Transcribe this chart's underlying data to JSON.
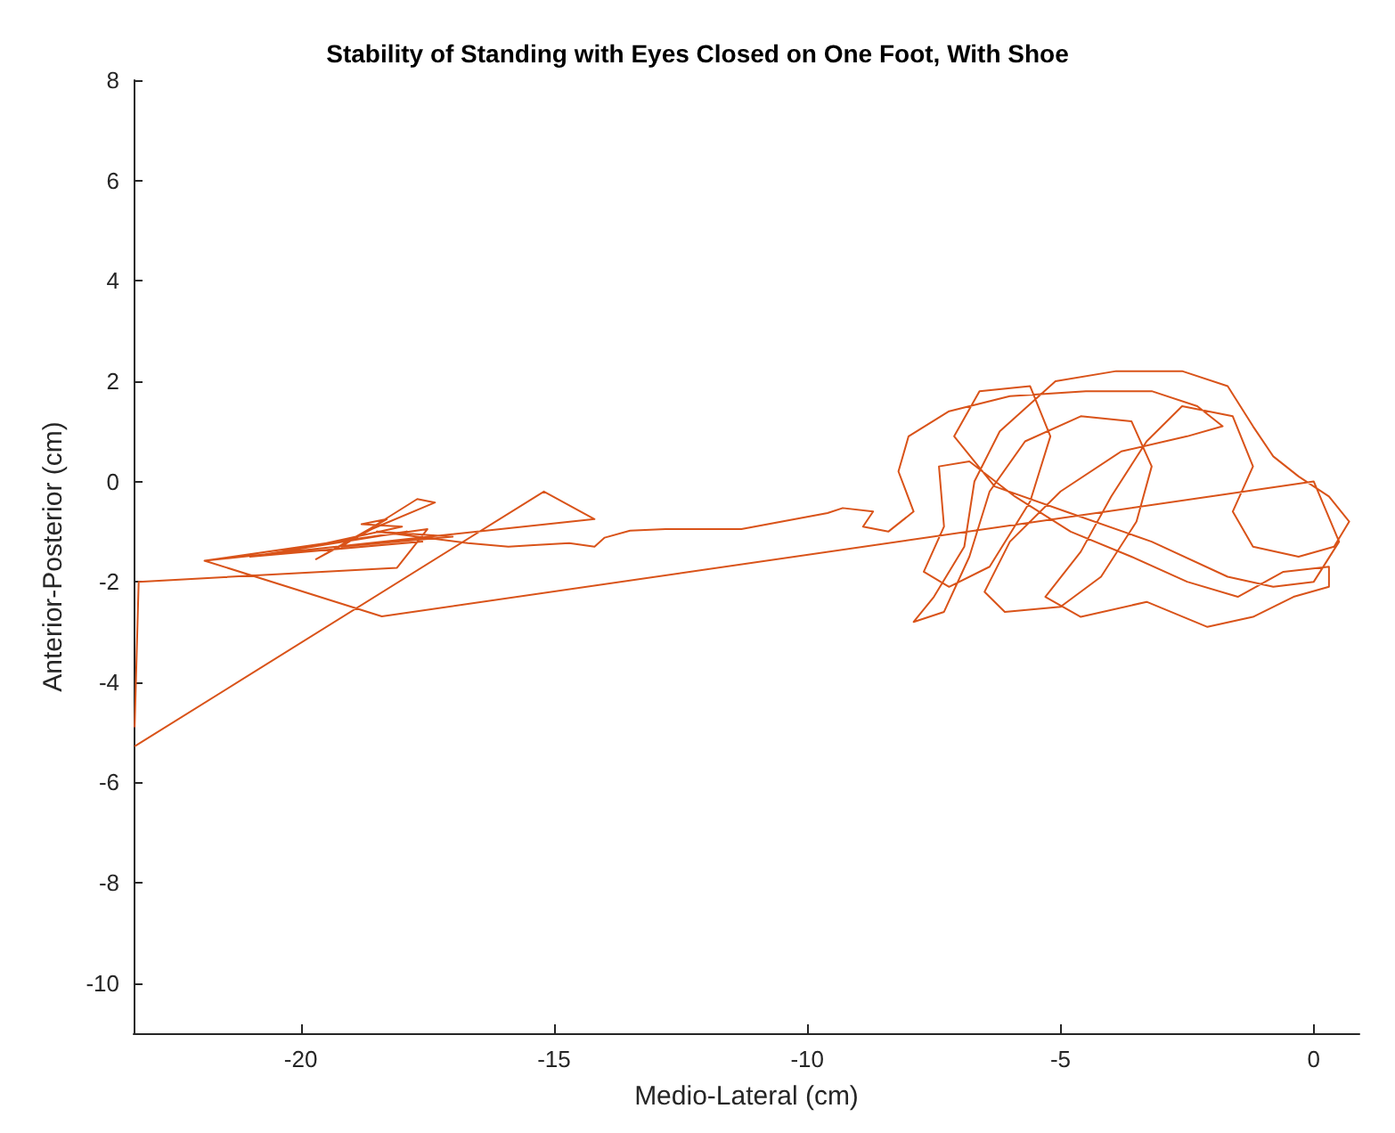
{
  "chart_data": {
    "type": "line",
    "title": "Stability of Standing with Eyes Closed on One Foot, With Shoe",
    "xlabel": "Medio-Lateral (cm)",
    "ylabel": "Anterior-Posterior (cm)",
    "x": [
      -23.28,
      -23.2,
      -18.1,
      -17.5,
      -21.9,
      -17.9,
      -21.0,
      -17.6,
      -20.5,
      -18.0,
      -18.8,
      -18.3,
      -19.7,
      -18.6,
      -17.35,
      -17.7,
      -19.2,
      -17.0,
      -18.5,
      -16.7,
      -15.9,
      -15.4,
      -14.7,
      -14.2,
      -14.0,
      -13.5,
      -12.8,
      -11.3,
      -9.6,
      -9.3,
      -8.7,
      -8.9,
      -8.4,
      -7.9,
      -8.2,
      -8.0,
      -7.2,
      -6.0,
      -4.5,
      -3.2,
      -2.3,
      -1.8,
      -2.5,
      -3.8,
      -5.0,
      -6.0,
      -6.5,
      -6.1,
      -5.0,
      -4.2,
      -3.5,
      -3.2,
      -3.6,
      -4.6,
      -5.7,
      -6.4,
      -6.8,
      -7.3,
      -7.9,
      -7.5,
      -6.9,
      -6.7,
      -6.2,
      -5.1,
      -3.9,
      -2.6,
      -1.7,
      -1.2,
      -0.8,
      -0.3,
      0.3,
      0.7,
      0.4,
      -0.3,
      -1.2,
      -1.6,
      -1.2,
      -1.6,
      -2.6,
      -3.3,
      -4.0,
      -4.6,
      -5.3,
      -4.6,
      -3.3,
      -2.1,
      -1.2,
      -0.4,
      0.3,
      0.3,
      -0.6,
      -1.5,
      -2.5,
      -3.6,
      -4.8,
      -5.9,
      -6.8,
      -7.4,
      -7.3,
      -7.7,
      -7.2,
      -6.4,
      -5.6,
      -5.2,
      -5.6,
      -6.6,
      -7.1,
      -6.3,
      -4.9,
      -3.2,
      -1.7,
      -0.8,
      0.0,
      0.5,
      0.0,
      -18.4,
      -21.9,
      -14.2,
      -15.2,
      -23.28
    ],
    "values": [
      -4.9,
      -2.0,
      -1.72,
      -0.95,
      -1.58,
      -1.0,
      -1.5,
      -1.2,
      -1.45,
      -0.9,
      -0.85,
      -0.75,
      -1.55,
      -0.95,
      -0.42,
      -0.35,
      -1.3,
      -1.1,
      -1.0,
      -1.23,
      -1.3,
      -1.27,
      -1.23,
      -1.3,
      -1.12,
      -0.98,
      -0.95,
      -0.95,
      -0.63,
      -0.53,
      -0.6,
      -0.9,
      -1.0,
      -0.6,
      0.2,
      0.9,
      1.4,
      1.7,
      1.8,
      1.8,
      1.5,
      1.1,
      0.9,
      0.6,
      -0.2,
      -1.2,
      -2.2,
      -2.6,
      -2.5,
      -1.9,
      -0.8,
      0.3,
      1.2,
      1.3,
      0.8,
      -0.2,
      -1.5,
      -2.6,
      -2.8,
      -2.3,
      -1.3,
      0.0,
      1.0,
      2.0,
      2.2,
      2.2,
      1.9,
      1.1,
      0.5,
      0.1,
      -0.3,
      -0.8,
      -1.3,
      -1.5,
      -1.3,
      -0.6,
      0.3,
      1.3,
      1.5,
      0.8,
      -0.3,
      -1.4,
      -2.3,
      -2.7,
      -2.4,
      -2.9,
      -2.7,
      -2.3,
      -2.1,
      -1.7,
      -1.8,
      -2.3,
      -2.0,
      -1.5,
      -1.0,
      -0.3,
      0.4,
      0.3,
      -0.9,
      -1.8,
      -2.1,
      -1.7,
      -0.4,
      0.9,
      1.9,
      1.8,
      0.9,
      -0.1,
      -0.6,
      -1.2,
      -1.9,
      -2.1,
      -2.0,
      -1.2,
      0.0,
      -2.69,
      -1.58,
      -0.75,
      -0.2,
      -5.28
    ],
    "color": "#d95319",
    "xlim": [
      -23.3,
      0.9
    ],
    "ylim": [
      -11,
      8
    ],
    "xticks": [
      -20,
      -15,
      -10,
      -5,
      0
    ],
    "yticks": [
      -10,
      -8,
      -6,
      -4,
      -2,
      0,
      2,
      4,
      6,
      8
    ],
    "marker": "none",
    "line_style": "solid"
  }
}
